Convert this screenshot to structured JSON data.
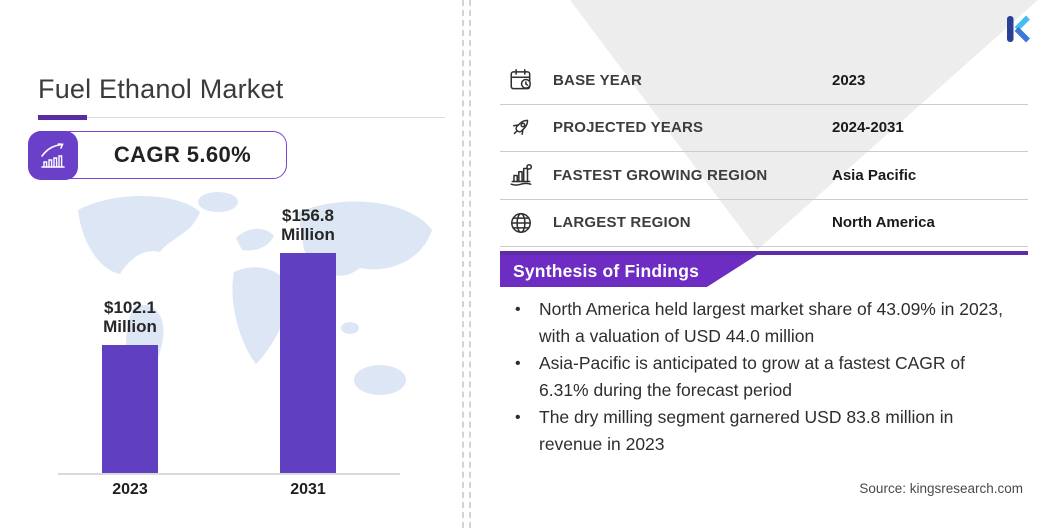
{
  "brand": {
    "logo_letter": "K"
  },
  "left": {
    "title": "Fuel Ethanol Market",
    "cagr_label": "CAGR 5.60%"
  },
  "chart_data": {
    "type": "bar",
    "title": "Fuel Ethanol Market",
    "unit": "USD Million",
    "categories": [
      "2023",
      "2031"
    ],
    "values": [
      102.1,
      156.8
    ],
    "bar_labels": [
      [
        "$102.1",
        "Million"
      ],
      [
        "$156.8",
        "Million"
      ]
    ],
    "bar_color": "#6040c0",
    "cagr_percent": 5.6,
    "grid": false,
    "legend": "none"
  },
  "facts": {
    "rows": [
      {
        "icon": "calendar-icon",
        "label": "BASE YEAR",
        "value": "2023"
      },
      {
        "icon": "rocket-icon",
        "label": "PROJECTED YEARS",
        "value": "2024-2031"
      },
      {
        "icon": "city-growth-icon",
        "label": "FASTEST GROWING REGION",
        "value": "Asia Pacific"
      },
      {
        "icon": "globe-icon",
        "label": "LARGEST REGION",
        "value": "North America"
      }
    ]
  },
  "findings": {
    "header": "Synthesis of Findings",
    "bullets": [
      "North America held largest market share of 43.09% in 2023, with a valuation of USD 44.0 million",
      "Asia-Pacific is anticipated to grow at a fastest CAGR of 6.31% during the forecast period",
      "The dry milling segment garnered USD 83.8 million in revenue in 2023"
    ]
  },
  "source": {
    "text": "Source:  kingsresearch.com"
  },
  "colors": {
    "bar_purple": "#6040c0",
    "banner_purple": "#6d2dc2",
    "dark_purple": "#5b2da2",
    "triangle_gray": "#ededed",
    "logo_navy": "#2b3f94",
    "logo_blue": "#3c77dd",
    "logo_cyan": "#45bdf2"
  }
}
